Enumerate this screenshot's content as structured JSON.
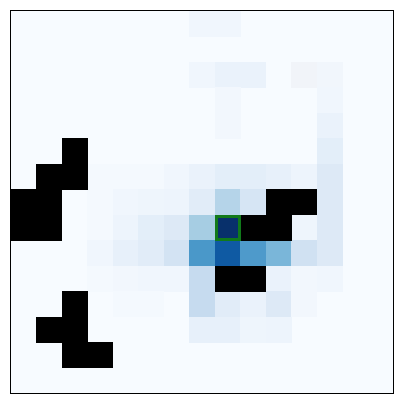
{
  "grid": {
    "rows": 15,
    "cols": 15,
    "background_color": "#f7fbff",
    "wall_color": "#000000",
    "agent_outline_color": "#117a1a",
    "walls": [
      [
        5,
        2
      ],
      [
        6,
        1
      ],
      [
        6,
        2
      ],
      [
        7,
        0
      ],
      [
        7,
        1
      ],
      [
        7,
        10
      ],
      [
        7,
        11
      ],
      [
        8,
        0
      ],
      [
        8,
        1
      ],
      [
        8,
        9
      ],
      [
        8,
        10
      ],
      [
        10,
        8
      ],
      [
        10,
        9
      ],
      [
        11,
        2
      ],
      [
        12,
        1
      ],
      [
        12,
        2
      ],
      [
        13,
        2
      ],
      [
        13,
        3
      ]
    ],
    "heatmap": [
      {
        "r": 0,
        "c": 7,
        "color": "#f0f6fd"
      },
      {
        "r": 0,
        "c": 8,
        "color": "#f0f6fd"
      },
      {
        "r": 2,
        "c": 7,
        "color": "#f0f6fd"
      },
      {
        "r": 2,
        "c": 8,
        "color": "#eaf2fb"
      },
      {
        "r": 2,
        "c": 9,
        "color": "#eaf2fb"
      },
      {
        "r": 2,
        "c": 11,
        "color": "#f1f4f9"
      },
      {
        "r": 2,
        "c": 12,
        "color": "#f1f6fc"
      },
      {
        "r": 3,
        "c": 8,
        "color": "#f2f7fd"
      },
      {
        "r": 3,
        "c": 12,
        "color": "#f0f6fd"
      },
      {
        "r": 4,
        "c": 8,
        "color": "#f2f7fd"
      },
      {
        "r": 4,
        "c": 12,
        "color": "#eaf2fb"
      },
      {
        "r": 5,
        "c": 12,
        "color": "#e3eef9"
      },
      {
        "r": 6,
        "c": 3,
        "color": "#f4f9fe"
      },
      {
        "r": 6,
        "c": 4,
        "color": "#f4f9fe"
      },
      {
        "r": 6,
        "c": 5,
        "color": "#f4f9fe"
      },
      {
        "r": 6,
        "c": 6,
        "color": "#f0f6fd"
      },
      {
        "r": 6,
        "c": 7,
        "color": "#eaf2fb"
      },
      {
        "r": 6,
        "c": 8,
        "color": "#e3eef9"
      },
      {
        "r": 6,
        "c": 9,
        "color": "#e3eef9"
      },
      {
        "r": 6,
        "c": 10,
        "color": "#e7f0fa"
      },
      {
        "r": 6,
        "c": 11,
        "color": "#edf4fc"
      },
      {
        "r": 6,
        "c": 12,
        "color": "#dde9f6"
      },
      {
        "r": 7,
        "c": 3,
        "color": "#f4f9fe"
      },
      {
        "r": 7,
        "c": 4,
        "color": "#f0f6fd"
      },
      {
        "r": 7,
        "c": 5,
        "color": "#eef5fc"
      },
      {
        "r": 7,
        "c": 6,
        "color": "#edf4fc"
      },
      {
        "r": 7,
        "c": 7,
        "color": "#e1ecf8"
      },
      {
        "r": 7,
        "c": 8,
        "color": "#b5d4e9"
      },
      {
        "r": 7,
        "c": 9,
        "color": "#d6e5f4"
      },
      {
        "r": 7,
        "c": 12,
        "color": "#dde9f6"
      },
      {
        "r": 8,
        "c": 3,
        "color": "#f4f9fe"
      },
      {
        "r": 8,
        "c": 4,
        "color": "#edf4fc"
      },
      {
        "r": 8,
        "c": 5,
        "color": "#e3eef9"
      },
      {
        "r": 8,
        "c": 6,
        "color": "#dde9f6"
      },
      {
        "r": 8,
        "c": 7,
        "color": "#a6cde3"
      },
      {
        "r": 8,
        "c": 8,
        "color": "#08306b"
      },
      {
        "r": 8,
        "c": 11,
        "color": "#eef5fc"
      },
      {
        "r": 8,
        "c": 12,
        "color": "#dde9f6"
      },
      {
        "r": 9,
        "c": 3,
        "color": "#f0f6fd"
      },
      {
        "r": 9,
        "c": 4,
        "color": "#e7f0fa"
      },
      {
        "r": 9,
        "c": 5,
        "color": "#e1ecf8"
      },
      {
        "r": 9,
        "c": 6,
        "color": "#d3e3f3"
      },
      {
        "r": 9,
        "c": 7,
        "color": "#4a98c9"
      },
      {
        "r": 9,
        "c": 8,
        "color": "#0f5aa3"
      },
      {
        "r": 9,
        "c": 9,
        "color": "#4e9acb"
      },
      {
        "r": 9,
        "c": 10,
        "color": "#7ab6d9"
      },
      {
        "r": 9,
        "c": 11,
        "color": "#d0e1f2"
      },
      {
        "r": 9,
        "c": 12,
        "color": "#dde9f6"
      },
      {
        "r": 10,
        "c": 3,
        "color": "#f4f9fe"
      },
      {
        "r": 10,
        "c": 4,
        "color": "#f2f7fd"
      },
      {
        "r": 10,
        "c": 5,
        "color": "#f0f6fd"
      },
      {
        "r": 10,
        "c": 6,
        "color": "#f0f6fd"
      },
      {
        "r": 10,
        "c": 7,
        "color": "#c6dbef"
      },
      {
        "r": 10,
        "c": 10,
        "color": "#eaf2fb"
      },
      {
        "r": 10,
        "c": 11,
        "color": "#f2f7fd"
      },
      {
        "r": 10,
        "c": 12,
        "color": "#f0f6fd"
      },
      {
        "r": 11,
        "c": 4,
        "color": "#f4f9fe"
      },
      {
        "r": 11,
        "c": 5,
        "color": "#f4f9fe"
      },
      {
        "r": 11,
        "c": 7,
        "color": "#c6dbef"
      },
      {
        "r": 11,
        "c": 8,
        "color": "#e1ecf8"
      },
      {
        "r": 11,
        "c": 9,
        "color": "#eaf2fb"
      },
      {
        "r": 11,
        "c": 10,
        "color": "#dde9f6"
      },
      {
        "r": 11,
        "c": 11,
        "color": "#f2f7fd"
      },
      {
        "r": 12,
        "c": 7,
        "color": "#e7f0fa"
      },
      {
        "r": 12,
        "c": 8,
        "color": "#e7f0fa"
      },
      {
        "r": 12,
        "c": 9,
        "color": "#eef5fc"
      },
      {
        "r": 12,
        "c": 10,
        "color": "#edf4fc"
      }
    ],
    "agent": {
      "r": 8,
      "c": 8
    }
  }
}
